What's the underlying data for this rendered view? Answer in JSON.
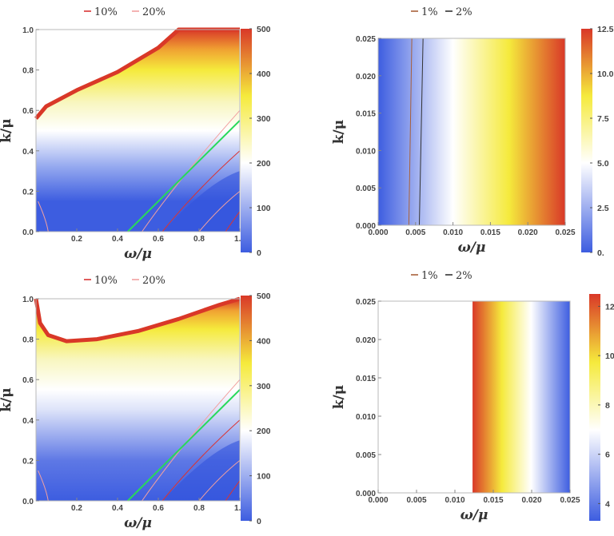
{
  "chart_data": [
    {
      "type": "heatmap",
      "panel": "top-left",
      "xlabel": "ω/μ",
      "ylabel": "k/μ",
      "xlim": [
        0,
        1
      ],
      "ylim": [
        0,
        1
      ],
      "x_ticks": [
        "0.2",
        "0.4",
        "0.6",
        "0.8",
        "1.0"
      ],
      "y_ticks": [
        "0.0",
        "0.2",
        "0.4",
        "0.6",
        "0.8",
        "1.0"
      ],
      "colorbar": {
        "range": [
          0,
          500
        ],
        "ticks": [
          "0",
          "100",
          "200",
          "300",
          "400",
          "500"
        ],
        "colors": [
          "#3d5de0",
          "#ffffff",
          "#f5ea3c",
          "#d93828"
        ]
      },
      "legend": [
        {
          "label": "10%",
          "color": "#d93434"
        },
        {
          "label": "20%",
          "color": "#f2a0a0"
        }
      ],
      "saturation_boundary": {
        "x": [
          0.0,
          0.05,
          0.2,
          0.4,
          0.6,
          0.7,
          1.0
        ],
        "y": [
          0.56,
          0.62,
          0.7,
          0.79,
          0.91,
          1.0,
          1.0
        ]
      },
      "green_line": {
        "x": [
          0.45,
          1.0
        ],
        "y": [
          0.0,
          0.55
        ]
      }
    },
    {
      "type": "heatmap",
      "panel": "top-right",
      "xlabel": "ω/μ",
      "ylabel": "k/μ",
      "xlim": [
        0,
        0.025
      ],
      "ylim": [
        0,
        0.025
      ],
      "x_ticks": [
        "0.000",
        "0.005",
        "0.010",
        "0.015",
        "0.020",
        "0.025"
      ],
      "y_ticks": [
        "0.000",
        "0.005",
        "0.010",
        "0.015",
        "0.020",
        "0.025"
      ],
      "colorbar": {
        "range": [
          0,
          12.5
        ],
        "ticks": [
          "0.",
          "2.5",
          "5.0",
          "7.5",
          "10.0",
          "12.5"
        ],
        "colors": [
          "#3d5de0",
          "#ffffff",
          "#f5ea3c",
          "#d93828"
        ]
      },
      "legend": [
        {
          "label": "1%",
          "color": "#a8603a"
        },
        {
          "label": "2%",
          "color": "#333333"
        }
      ],
      "contours": [
        {
          "label": "1%",
          "x": [
            0.0041,
            0.0045
          ]
        },
        {
          "label": "2%",
          "x": [
            0.0055,
            0.006
          ]
        }
      ]
    },
    {
      "type": "heatmap",
      "panel": "bottom-left",
      "xlabel": "ω/μ",
      "ylabel": "k/μ",
      "xlim": [
        0,
        1
      ],
      "ylim": [
        0,
        1
      ],
      "x_ticks": [
        "0.2",
        "0.4",
        "0.6",
        "0.8",
        "1.0"
      ],
      "y_ticks": [
        "0.0",
        "0.2",
        "0.4",
        "0.6",
        "0.8",
        "1.0"
      ],
      "colorbar": {
        "range": [
          0,
          500
        ],
        "ticks": [
          "0",
          "100",
          "200",
          "300",
          "400",
          "500"
        ],
        "colors": [
          "#3d5de0",
          "#ffffff",
          "#f5ea3c",
          "#d93828"
        ]
      },
      "legend": [
        {
          "label": "10%",
          "color": "#d93434"
        },
        {
          "label": "20%",
          "color": "#f2a0a0"
        }
      ],
      "saturation_boundary": {
        "x": [
          0.0,
          0.02,
          0.06,
          0.15,
          0.3,
          0.5,
          0.7,
          0.9,
          1.0
        ],
        "y": [
          1.0,
          0.88,
          0.82,
          0.79,
          0.8,
          0.84,
          0.9,
          0.97,
          1.0
        ]
      },
      "green_line": {
        "x": [
          0.45,
          1.0
        ],
        "y": [
          0.0,
          0.55
        ]
      }
    },
    {
      "type": "heatmap",
      "panel": "bottom-right",
      "xlabel": "ω/μ",
      "ylabel": "k/μ",
      "xlim": [
        0,
        0.025
      ],
      "ylim": [
        0,
        0.025
      ],
      "x_ticks": [
        "0.000",
        "0.005",
        "0.010",
        "0.015",
        "0.020",
        "0.025"
      ],
      "y_ticks": [
        "0.000",
        "0.005",
        "0.010",
        "0.015",
        "0.020",
        "0.025"
      ],
      "colorbar": {
        "range": [
          3.3,
          12.5
        ],
        "ticks": [
          "4",
          "6",
          "8",
          "10",
          "12"
        ],
        "colors": [
          "#3d5de0",
          "#ffffff",
          "#f5ea3c",
          "#d93828"
        ]
      },
      "legend": [
        {
          "label": "1%",
          "color": "#a8603a"
        },
        {
          "label": "2%",
          "color": "#333333"
        }
      ],
      "blank_region_x": [
        0,
        0.0123
      ]
    }
  ]
}
